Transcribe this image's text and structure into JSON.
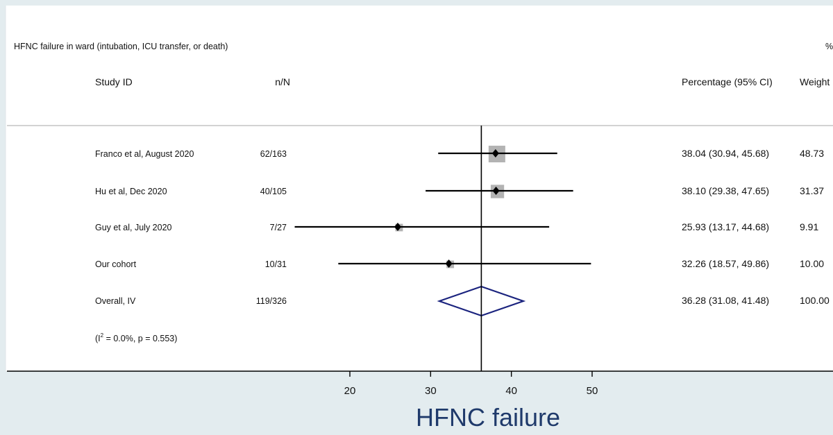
{
  "chart_data": {
    "type": "forest",
    "title": "HFNC failure in ward (intubation, ICU transfer, or death)",
    "title_right": "%",
    "columns": {
      "study": "Study ID",
      "nN": "n/N",
      "pct": "Percentage (95% CI)",
      "weight": "Weight"
    },
    "studies": [
      {
        "label": "Franco et al, August 2020",
        "nN": "62/163",
        "estimate": 38.04,
        "lower": 30.94,
        "upper": 45.68,
        "ci_text": "38.04 (30.94, 45.68)",
        "weight": 48.73,
        "weight_text": "48.73"
      },
      {
        "label": "Hu et al, Dec 2020",
        "nN": "40/105",
        "estimate": 38.1,
        "lower": 29.38,
        "upper": 47.65,
        "ci_text": "38.10 (29.38, 47.65)",
        "weight": 31.37,
        "weight_text": "31.37"
      },
      {
        "label": "Guy et al, July 2020",
        "nN": "7/27",
        "estimate": 25.93,
        "lower": 13.17,
        "upper": 44.68,
        "ci_text": "25.93 (13.17, 44.68)",
        "weight": 9.91,
        "weight_text": "9.91"
      },
      {
        "label": "Our cohort",
        "nN": "10/31",
        "estimate": 32.26,
        "lower": 18.57,
        "upper": 49.86,
        "ci_text": "32.26 (18.57, 49.86)",
        "weight": 10.0,
        "weight_text": "10.00"
      }
    ],
    "overall": {
      "label": "Overall, IV",
      "nN": "119/326",
      "estimate": 36.28,
      "lower": 31.08,
      "upper": 41.48,
      "ci_text": "36.28 (31.08, 41.48)",
      "weight_text": "100.00"
    },
    "heterogeneity": {
      "prefix": "(I",
      "sup": "2",
      "suffix": " = 0.0%, p = 0.553)"
    },
    "x_ticks": [
      20,
      30,
      40,
      50
    ],
    "xlim": [
      13.17,
      49.86
    ],
    "xlabel": "HFNC failure",
    "colors": {
      "diamond": "#1a237e",
      "box": "#b3b3b3",
      "line": "#000000",
      "xlabel": "#1f3a6b",
      "background": "#e3ecef"
    }
  }
}
